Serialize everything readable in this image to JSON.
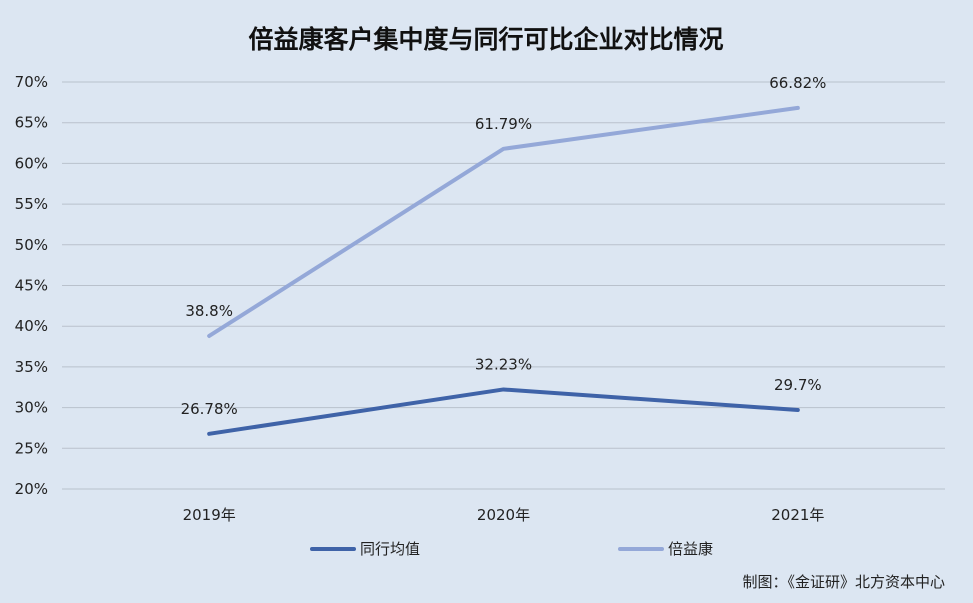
{
  "chart_data": {
    "type": "line",
    "title": "倍益康客户集中度与同行可比企业对比情况",
    "categories": [
      "2019年",
      "2020年",
      "2021年"
    ],
    "series": [
      {
        "name": "同行均值",
        "values": [
          26.78,
          32.23,
          29.7
        ],
        "labels": [
          "26.78%",
          "32.23%",
          "29.7%"
        ],
        "color": "#3f63a8"
      },
      {
        "name": "倍益康",
        "values": [
          38.8,
          61.79,
          66.82
        ],
        "labels": [
          "38.8%",
          "61.79%",
          "66.82%"
        ],
        "color": "#94a8d8"
      }
    ],
    "ylim": [
      20,
      70
    ],
    "yticks": [
      20,
      25,
      30,
      35,
      40,
      45,
      50,
      55,
      60,
      65,
      70
    ],
    "ytick_labels": [
      "20%",
      "25%",
      "30%",
      "35%",
      "40%",
      "45%",
      "50%",
      "55%",
      "60%",
      "65%",
      "70%"
    ],
    "xlabel": "",
    "ylabel": "",
    "grid": true,
    "legend_position": "bottom",
    "background": "#dce6f2",
    "gridline_color": "#b9c1cc"
  },
  "credit": "制图：《金证研》北方资本中心"
}
